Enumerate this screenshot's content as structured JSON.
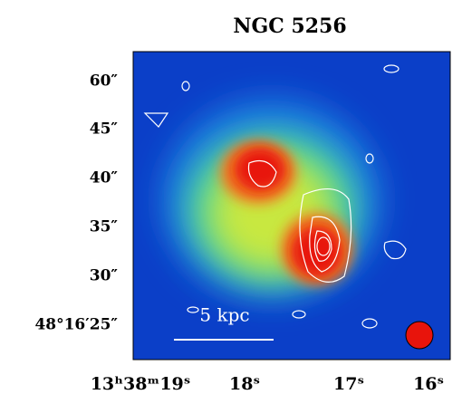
{
  "title": "NGC 5256",
  "y_labels": [
    "60″",
    "45″",
    "40″",
    "35″",
    "30″",
    "48°16′25″"
  ],
  "x_labels": [
    "13ʰ38ᵐ19ˢ",
    "18ˢ",
    "17ˢ",
    "16ˢ"
  ],
  "scale_bar": "5 kpc"
}
